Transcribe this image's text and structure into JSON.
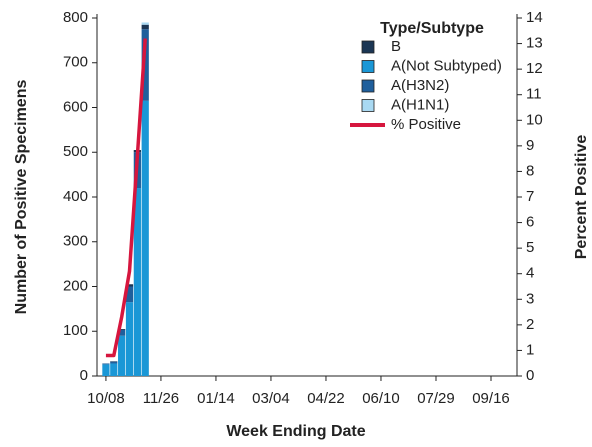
{
  "chart_data": {
    "type": "bar",
    "stacked": true,
    "categories": [
      "10/08",
      null,
      null,
      null,
      null,
      null,
      null,
      "11/26",
      null,
      null,
      null,
      null,
      null,
      null,
      "01/14",
      null,
      null,
      null,
      null,
      null,
      null,
      "03/04",
      null,
      null,
      null,
      null,
      null,
      null,
      "04/22",
      null,
      null,
      null,
      null,
      null,
      null,
      "06/10",
      null,
      null,
      null,
      null,
      null,
      null,
      "07/29",
      null,
      null,
      null,
      null,
      null,
      null,
      "09/16",
      null,
      null,
      null
    ],
    "x_label": "Week Ending Date",
    "y_label": "Number of Positive Specimens",
    "y2_label": "Percent Positive",
    "legend_title": "Type/Subtype",
    "series": [
      {
        "name": "B",
        "color": "#1b3654",
        "values": [
          0,
          1,
          2,
          5,
          5,
          10,
          null,
          null,
          null,
          null,
          null,
          null,
          null,
          null,
          null,
          null,
          null,
          null,
          null,
          null,
          null,
          null,
          null,
          null,
          null,
          null,
          null,
          null,
          null,
          null,
          null,
          null,
          null,
          null,
          null,
          null,
          null,
          null,
          null,
          null,
          null,
          null,
          null,
          null,
          null,
          null,
          null,
          null,
          null,
          null,
          null,
          null,
          null
        ]
      },
      {
        "name": "A(Not Subtyped)",
        "color": "#1a97d6",
        "values": [
          26,
          28,
          90,
          165,
          420,
          615,
          null,
          null,
          null,
          null,
          null,
          null,
          null,
          null,
          null,
          null,
          null,
          null,
          null,
          null,
          null,
          null,
          null,
          null,
          null,
          null,
          null,
          null,
          null,
          null,
          null,
          null,
          null,
          null,
          null,
          null,
          null,
          null,
          null,
          null,
          null,
          null,
          null,
          null,
          null,
          null,
          null,
          null,
          null,
          null,
          null,
          null,
          null
        ]
      },
      {
        "name": "A(H3N2)",
        "color": "#1f5f9c",
        "values": [
          2,
          4,
          13,
          35,
          80,
          160,
          null,
          null,
          null,
          null,
          null,
          null,
          null,
          null,
          null,
          null,
          null,
          null,
          null,
          null,
          null,
          null,
          null,
          null,
          null,
          null,
          null,
          null,
          null,
          null,
          null,
          null,
          null,
          null,
          null,
          null,
          null,
          null,
          null,
          null,
          null,
          null,
          null,
          null,
          null,
          null,
          null,
          null,
          null,
          null,
          null,
          null,
          null
        ]
      },
      {
        "name": "A(H1N1)",
        "color": "#a9d9f2",
        "values": [
          0,
          0,
          0,
          0,
          0,
          5,
          null,
          null,
          null,
          null,
          null,
          null,
          null,
          null,
          null,
          null,
          null,
          null,
          null,
          null,
          null,
          null,
          null,
          null,
          null,
          null,
          null,
          null,
          null,
          null,
          null,
          null,
          null,
          null,
          null,
          null,
          null,
          null,
          null,
          null,
          null,
          null,
          null,
          null,
          null,
          null,
          null,
          null,
          null,
          null,
          null,
          null,
          null
        ]
      },
      {
        "name": "% Positive",
        "type": "line",
        "axis": "y2",
        "color": "#d6163e",
        "values": [
          0.8,
          0.8,
          2.3,
          4.1,
          8.6,
          13.2,
          null,
          null,
          null,
          null,
          null,
          null,
          null,
          null,
          null,
          null,
          null,
          null,
          null,
          null,
          null,
          null,
          null,
          null,
          null,
          null,
          null,
          null,
          null,
          null,
          null,
          null,
          null,
          null,
          null,
          null,
          null,
          null,
          null,
          null,
          null,
          null,
          null,
          null,
          null,
          null,
          null,
          null,
          null,
          null,
          null,
          null,
          null
        ]
      }
    ],
    "ylim": [
      0,
      800
    ],
    "yticks": [
      0,
      100,
      200,
      300,
      400,
      500,
      600,
      700,
      800
    ],
    "y2lim": [
      0,
      14
    ],
    "y2ticks": [
      0,
      1,
      2,
      3,
      4,
      5,
      6,
      7,
      8,
      9,
      10,
      11,
      12,
      13,
      14
    ],
    "grid": false
  }
}
